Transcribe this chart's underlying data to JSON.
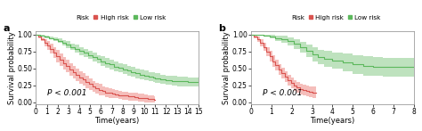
{
  "panel_a": {
    "label": "a",
    "xlabel": "Time(years)",
    "ylabel": "Survival probability",
    "xlim": [
      0,
      15
    ],
    "ylim": [
      -0.02,
      1.05
    ],
    "xticks": [
      0,
      1,
      2,
      3,
      4,
      5,
      6,
      7,
      8,
      9,
      10,
      11,
      12,
      13,
      14,
      15
    ],
    "yticks": [
      0.0,
      0.25,
      0.5,
      0.75,
      1.0
    ],
    "pvalue": "P < 0.001",
    "high_risk_color": "#d9534f",
    "low_risk_color": "#5cb85c",
    "high_risk_fill": "#f2a8a5",
    "low_risk_fill": "#a8d9a8",
    "high_risk_x": [
      0,
      0.2,
      0.5,
      0.8,
      1.0,
      1.3,
      1.6,
      1.9,
      2.2,
      2.5,
      2.8,
      3.1,
      3.4,
      3.7,
      4.0,
      4.3,
      4.6,
      4.9,
      5.2,
      5.5,
      5.8,
      6.1,
      6.4,
      6.7,
      7.0,
      7.3,
      7.6,
      7.9,
      8.2,
      8.5,
      8.8,
      9.1,
      9.4,
      9.7,
      10.0,
      10.3,
      10.6,
      10.9,
      11.0
    ],
    "high_risk_y": [
      1.0,
      0.97,
      0.93,
      0.88,
      0.84,
      0.79,
      0.74,
      0.68,
      0.63,
      0.58,
      0.54,
      0.49,
      0.45,
      0.41,
      0.37,
      0.34,
      0.3,
      0.27,
      0.24,
      0.21,
      0.19,
      0.17,
      0.15,
      0.14,
      0.13,
      0.12,
      0.11,
      0.1,
      0.1,
      0.09,
      0.09,
      0.08,
      0.07,
      0.07,
      0.06,
      0.05,
      0.05,
      0.04,
      0.04
    ],
    "high_risk_upper": [
      1.0,
      0.99,
      0.96,
      0.93,
      0.9,
      0.86,
      0.82,
      0.77,
      0.72,
      0.67,
      0.63,
      0.58,
      0.54,
      0.5,
      0.46,
      0.43,
      0.39,
      0.36,
      0.32,
      0.29,
      0.27,
      0.24,
      0.22,
      0.21,
      0.2,
      0.18,
      0.17,
      0.16,
      0.16,
      0.15,
      0.15,
      0.14,
      0.13,
      0.13,
      0.12,
      0.11,
      0.1,
      0.09,
      0.09
    ],
    "high_risk_lower": [
      1.0,
      0.95,
      0.9,
      0.83,
      0.78,
      0.72,
      0.66,
      0.59,
      0.54,
      0.49,
      0.45,
      0.4,
      0.36,
      0.32,
      0.28,
      0.25,
      0.21,
      0.18,
      0.16,
      0.13,
      0.11,
      0.1,
      0.08,
      0.07,
      0.06,
      0.06,
      0.05,
      0.04,
      0.04,
      0.03,
      0.03,
      0.02,
      0.01,
      0.01,
      0.0,
      0.0,
      0.0,
      0.0,
      0.0
    ],
    "low_risk_x": [
      0,
      0.4,
      0.8,
      1.2,
      1.6,
      2.0,
      2.4,
      2.8,
      3.2,
      3.6,
      4.0,
      4.4,
      4.8,
      5.2,
      5.6,
      6.0,
      6.4,
      6.8,
      7.2,
      7.6,
      8.0,
      8.4,
      8.8,
      9.2,
      9.6,
      10.0,
      10.4,
      10.8,
      11.0,
      11.5,
      12.0,
      12.5,
      13.0,
      14.0,
      14.5,
      15.0
    ],
    "low_risk_y": [
      1.0,
      0.99,
      0.97,
      0.95,
      0.93,
      0.91,
      0.88,
      0.85,
      0.82,
      0.79,
      0.76,
      0.73,
      0.7,
      0.67,
      0.64,
      0.61,
      0.58,
      0.56,
      0.53,
      0.51,
      0.49,
      0.47,
      0.45,
      0.43,
      0.41,
      0.4,
      0.38,
      0.37,
      0.36,
      0.34,
      0.33,
      0.32,
      0.31,
      0.3,
      0.3,
      0.38
    ],
    "low_risk_upper": [
      1.0,
      1.0,
      0.99,
      0.97,
      0.96,
      0.94,
      0.92,
      0.9,
      0.87,
      0.85,
      0.82,
      0.79,
      0.76,
      0.73,
      0.7,
      0.68,
      0.65,
      0.63,
      0.6,
      0.58,
      0.56,
      0.54,
      0.52,
      0.5,
      0.48,
      0.47,
      0.45,
      0.44,
      0.43,
      0.41,
      0.4,
      0.39,
      0.38,
      0.37,
      0.37,
      0.58
    ],
    "low_risk_lower": [
      1.0,
      0.98,
      0.95,
      0.93,
      0.9,
      0.88,
      0.84,
      0.8,
      0.77,
      0.73,
      0.7,
      0.67,
      0.64,
      0.61,
      0.58,
      0.54,
      0.51,
      0.49,
      0.46,
      0.44,
      0.42,
      0.4,
      0.38,
      0.36,
      0.34,
      0.33,
      0.31,
      0.3,
      0.29,
      0.27,
      0.26,
      0.25,
      0.24,
      0.23,
      0.23,
      0.18
    ]
  },
  "panel_b": {
    "label": "b",
    "xlabel": "Time(years)",
    "ylabel": "Survival probability",
    "xlim": [
      0,
      8
    ],
    "ylim": [
      -0.02,
      1.05
    ],
    "xticks": [
      0,
      1,
      2,
      3,
      4,
      5,
      6,
      7,
      8
    ],
    "yticks": [
      0.0,
      0.25,
      0.5,
      0.75,
      1.0
    ],
    "pvalue": "P < 0.001",
    "high_risk_color": "#d9534f",
    "low_risk_color": "#5cb85c",
    "high_risk_fill": "#f2a8a5",
    "low_risk_fill": "#a8d9a8",
    "high_risk_x": [
      0,
      0.15,
      0.3,
      0.45,
      0.6,
      0.75,
      0.9,
      1.05,
      1.2,
      1.35,
      1.5,
      1.65,
      1.8,
      1.95,
      2.1,
      2.25,
      2.4,
      2.55,
      2.7,
      2.85,
      3.0,
      3.2
    ],
    "high_risk_y": [
      1.0,
      0.97,
      0.93,
      0.88,
      0.82,
      0.75,
      0.68,
      0.61,
      0.55,
      0.49,
      0.43,
      0.38,
      0.33,
      0.29,
      0.25,
      0.22,
      0.2,
      0.18,
      0.17,
      0.16,
      0.15,
      0.15
    ],
    "high_risk_upper": [
      1.0,
      0.99,
      0.97,
      0.93,
      0.88,
      0.82,
      0.76,
      0.69,
      0.63,
      0.57,
      0.51,
      0.46,
      0.41,
      0.37,
      0.33,
      0.3,
      0.28,
      0.26,
      0.25,
      0.24,
      0.23,
      0.23
    ],
    "high_risk_lower": [
      1.0,
      0.95,
      0.89,
      0.83,
      0.76,
      0.68,
      0.6,
      0.53,
      0.47,
      0.41,
      0.35,
      0.3,
      0.25,
      0.21,
      0.17,
      0.14,
      0.12,
      0.1,
      0.09,
      0.08,
      0.07,
      0.07
    ],
    "low_risk_x": [
      0,
      0.3,
      0.6,
      0.9,
      1.2,
      1.5,
      1.8,
      2.1,
      2.4,
      2.7,
      3.0,
      3.3,
      3.6,
      4.0,
      4.5,
      5.0,
      5.5,
      6.0,
      6.5,
      7.0,
      7.5,
      8.0
    ],
    "low_risk_y": [
      1.0,
      1.0,
      0.99,
      0.97,
      0.95,
      0.93,
      0.9,
      0.86,
      0.81,
      0.76,
      0.71,
      0.67,
      0.64,
      0.62,
      0.59,
      0.56,
      0.54,
      0.53,
      0.52,
      0.52,
      0.52,
      0.52
    ],
    "low_risk_upper": [
      1.0,
      1.0,
      1.0,
      1.0,
      0.99,
      0.98,
      0.96,
      0.93,
      0.89,
      0.85,
      0.81,
      0.78,
      0.76,
      0.74,
      0.72,
      0.7,
      0.68,
      0.67,
      0.66,
      0.66,
      0.66,
      0.66
    ],
    "low_risk_lower": [
      1.0,
      1.0,
      0.98,
      0.94,
      0.91,
      0.88,
      0.84,
      0.79,
      0.73,
      0.67,
      0.61,
      0.56,
      0.52,
      0.5,
      0.46,
      0.42,
      0.4,
      0.39,
      0.38,
      0.38,
      0.38,
      0.38
    ]
  },
  "legend_label": "Risk",
  "high_risk_label": "High risk",
  "low_risk_label": "Low risk",
  "bg_color": "#ffffff",
  "plot_bg": "#ffffff",
  "title_fontsize": 8,
  "axis_fontsize": 6,
  "tick_fontsize": 5.5,
  "pvalue_fontsize": 6.5
}
